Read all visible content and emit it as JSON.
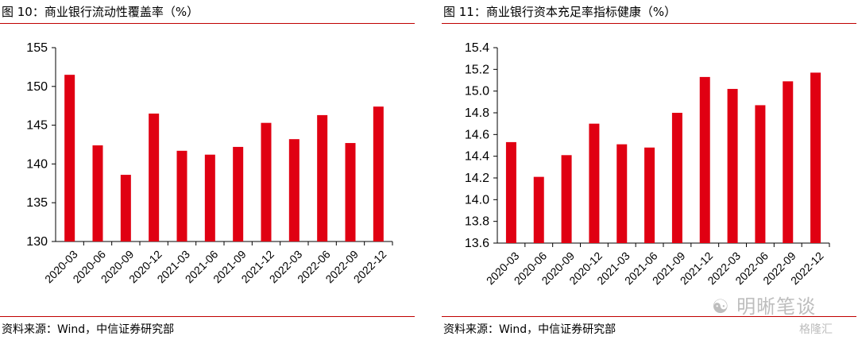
{
  "colors": {
    "bar": "#E00012",
    "rule": "#C00000",
    "axis": "#000000"
  },
  "charts": [
    {
      "title": "图 10：商业银行流动性覆盖率（%）",
      "source": "资料来源：Wind，中信证券研究部"
    },
    {
      "title": "图 11：商业银行资本充足率指标健康（%）",
      "source": "资料来源：Wind，中信证券研究部"
    }
  ],
  "watermark": {
    "text": "明晰笔谈",
    "logo": "格隆汇",
    "icon": "wechat-icon"
  },
  "chart_data": [
    {
      "type": "bar",
      "title": "图 10：商业银行流动性覆盖率（%）",
      "categories": [
        "2020-03",
        "2020-06",
        "2020-09",
        "2020-12",
        "2021-03",
        "2021-06",
        "2021-09",
        "2021-12",
        "2022-03",
        "2022-06",
        "2022-09",
        "2022-12"
      ],
      "values": [
        151.5,
        142.4,
        138.6,
        146.5,
        141.7,
        141.2,
        142.2,
        145.3,
        143.2,
        146.3,
        142.7,
        147.4
      ],
      "ylim": [
        130,
        155
      ],
      "yticks": [
        "130",
        "135",
        "140",
        "145",
        "150",
        "155"
      ],
      "ytick_values": [
        130,
        135,
        140,
        145,
        150,
        155
      ],
      "xlabel": "",
      "ylabel": "",
      "grid": false,
      "legend": "none"
    },
    {
      "type": "bar",
      "title": "图 11：商业银行资本充足率指标健康（%）",
      "categories": [
        "2020-03",
        "2020-06",
        "2020-09",
        "2020-12",
        "2021-03",
        "2021-06",
        "2021-09",
        "2021-12",
        "2022-03",
        "2022-06",
        "2022-09",
        "2022-12"
      ],
      "values": [
        14.53,
        14.21,
        14.41,
        14.7,
        14.51,
        14.48,
        14.8,
        15.13,
        15.02,
        14.87,
        15.09,
        15.17
      ],
      "ylim": [
        13.6,
        15.4
      ],
      "yticks": [
        "13.6",
        "13.8",
        "14.0",
        "14.2",
        "14.4",
        "14.6",
        "14.8",
        "15.0",
        "15.2",
        "15.4"
      ],
      "ytick_values": [
        13.6,
        13.8,
        14.0,
        14.2,
        14.4,
        14.6,
        14.8,
        15.0,
        15.2,
        15.4
      ],
      "xlabel": "",
      "ylabel": "",
      "grid": false,
      "legend": "none"
    }
  ]
}
